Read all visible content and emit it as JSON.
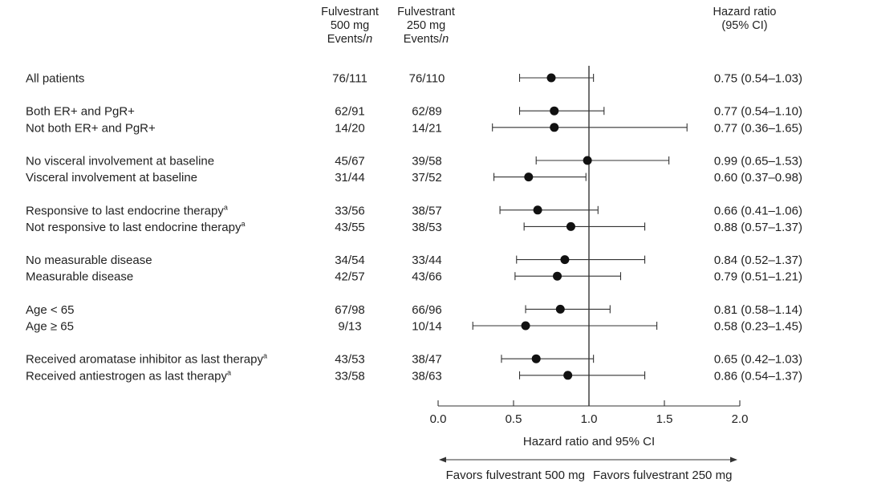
{
  "columns": {
    "group500": {
      "line1": "Fulvestrant",
      "line2": "500 mg",
      "line3a": "Events/",
      "line3b": "n"
    },
    "group250": {
      "line1": "Fulvestrant",
      "line2": "250 mg",
      "line3a": "Events/",
      "line3b": "n"
    },
    "hr": {
      "line1": "Hazard ratio",
      "line2": "(95% CI)"
    }
  },
  "chart_data": {
    "type": "forest",
    "xlabel": "Hazard ratio and 95% CI",
    "xlim": [
      0.0,
      2.0
    ],
    "xticks": [
      "0.0",
      "0.5",
      "1.0",
      "1.5",
      "2.0"
    ],
    "reference_line": 1.0,
    "favors_left": "Favors fulvestrant 500 mg",
    "favors_right": "Favors fulvestrant 250 mg",
    "rows": [
      {
        "label": "All patients",
        "sup": "",
        "group": 0,
        "events500": "76/111",
        "events250": "76/110",
        "hr": 0.75,
        "lo": 0.54,
        "hi": 1.03,
        "hr_text": "0.75 (0.54–1.03)"
      },
      {
        "label": "Both ER+ and PgR+",
        "sup": "",
        "group": 1,
        "events500": "62/91",
        "events250": "62/89",
        "hr": 0.77,
        "lo": 0.54,
        "hi": 1.1,
        "hr_text": "0.77 (0.54–1.10)"
      },
      {
        "label": "Not both ER+ and PgR+",
        "sup": "",
        "group": 1,
        "events500": "14/20",
        "events250": "14/21",
        "hr": 0.77,
        "lo": 0.36,
        "hi": 1.65,
        "hr_text": "0.77 (0.36–1.65)"
      },
      {
        "label": "No visceral involvement at baseline",
        "sup": "",
        "group": 2,
        "events500": "45/67",
        "events250": "39/58",
        "hr": 0.99,
        "lo": 0.65,
        "hi": 1.53,
        "hr_text": "0.99 (0.65–1.53)"
      },
      {
        "label": "Visceral involvement at baseline",
        "sup": "",
        "group": 2,
        "events500": "31/44",
        "events250": "37/52",
        "hr": 0.6,
        "lo": 0.37,
        "hi": 0.98,
        "hr_text": "0.60 (0.37–0.98)"
      },
      {
        "label": "Responsive to last endocrine therapy",
        "sup": "a",
        "group": 3,
        "events500": "33/56",
        "events250": "38/57",
        "hr": 0.66,
        "lo": 0.41,
        "hi": 1.06,
        "hr_text": "0.66 (0.41–1.06)"
      },
      {
        "label": "Not responsive to last endocrine therapy",
        "sup": "a",
        "group": 3,
        "events500": "43/55",
        "events250": "38/53",
        "hr": 0.88,
        "lo": 0.57,
        "hi": 1.37,
        "hr_text": "0.88 (0.57–1.37)"
      },
      {
        "label": "No measurable disease",
        "sup": "",
        "group": 4,
        "events500": "34/54",
        "events250": "33/44",
        "hr": 0.84,
        "lo": 0.52,
        "hi": 1.37,
        "hr_text": "0.84 (0.52–1.37)"
      },
      {
        "label": "Measurable disease",
        "sup": "",
        "group": 4,
        "events500": "42/57",
        "events250": "43/66",
        "hr": 0.79,
        "lo": 0.51,
        "hi": 1.21,
        "hr_text": "0.79 (0.51–1.21)"
      },
      {
        "label": "Age < 65",
        "sup": "",
        "group": 5,
        "events500": "67/98",
        "events250": "66/96",
        "hr": 0.81,
        "lo": 0.58,
        "hi": 1.14,
        "hr_text": "0.81 (0.58–1.14)"
      },
      {
        "label": "Age ≥ 65",
        "sup": "",
        "group": 5,
        "events500": "9/13",
        "events250": "10/14",
        "hr": 0.58,
        "lo": 0.23,
        "hi": 1.45,
        "hr_text": "0.58 (0.23–1.45)"
      },
      {
        "label": "Received aromatase inhibitor as last therapy",
        "sup": "a",
        "group": 6,
        "events500": "43/53",
        "events250": "38/47",
        "hr": 0.65,
        "lo": 0.42,
        "hi": 1.03,
        "hr_text": "0.65 (0.42–1.03)"
      },
      {
        "label": "Received antiestrogen as last therapy",
        "sup": "a",
        "group": 6,
        "events500": "33/58",
        "events250": "38/63",
        "hr": 0.86,
        "lo": 0.54,
        "hi": 1.37,
        "hr_text": "0.86 (0.54–1.37)"
      }
    ]
  }
}
